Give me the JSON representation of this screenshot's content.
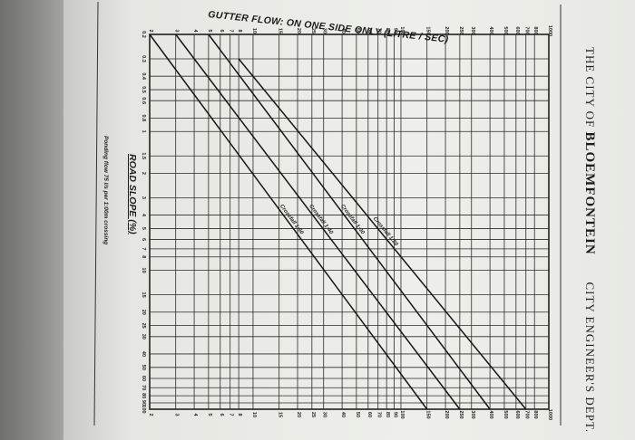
{
  "header": {
    "city": "THE CITY OF",
    "city_name": "BLOEMFONTEIN",
    "department": "CITY ENGINEER'S DEPT."
  },
  "chart_data": {
    "type": "line",
    "title": "GUTTER FLOW: ON ONE SIDE ONLY (LITRE / SEC)",
    "xlabel": "ROAD SLOPE (%)",
    "ylabel": "",
    "footnote": "Ponding flow 75 l/s per 1:00m crossing",
    "scale": "log-log",
    "grid": true,
    "x_ticks": [
      "0.2",
      "0.3",
      "0.4",
      "0.5",
      "0.6",
      "0.8",
      "1",
      "1.5",
      "2",
      "3",
      "4",
      "5",
      "6",
      "7",
      "8",
      "10",
      "15",
      "20",
      "25",
      "30",
      "40",
      "50",
      "60",
      "70",
      "80",
      "90",
      "100"
    ],
    "y_ticks": [
      "2",
      "3",
      "4",
      "5",
      "6",
      "7",
      "8",
      "10",
      "15",
      "20",
      "25",
      "30",
      "40",
      "50",
      "60",
      "70",
      "80",
      "90",
      "100",
      "150",
      "200",
      "250",
      "300",
      "400",
      "500",
      "600",
      "700",
      "800",
      "1000"
    ],
    "series": [
      {
        "name": "Crossfall 1:20",
        "x": [
          0.3,
          100
        ],
        "y": [
          8,
          700
        ]
      },
      {
        "name": "Crossfall 1:30",
        "x": [
          0.2,
          100
        ],
        "y": [
          5,
          400
        ]
      },
      {
        "name": "Crossfall 1:40",
        "x": [
          0.2,
          100
        ],
        "y": [
          3,
          250
        ]
      },
      {
        "name": "Crossfall 1:50",
        "x": [
          0.2,
          100
        ],
        "y": [
          2,
          150
        ]
      }
    ]
  }
}
